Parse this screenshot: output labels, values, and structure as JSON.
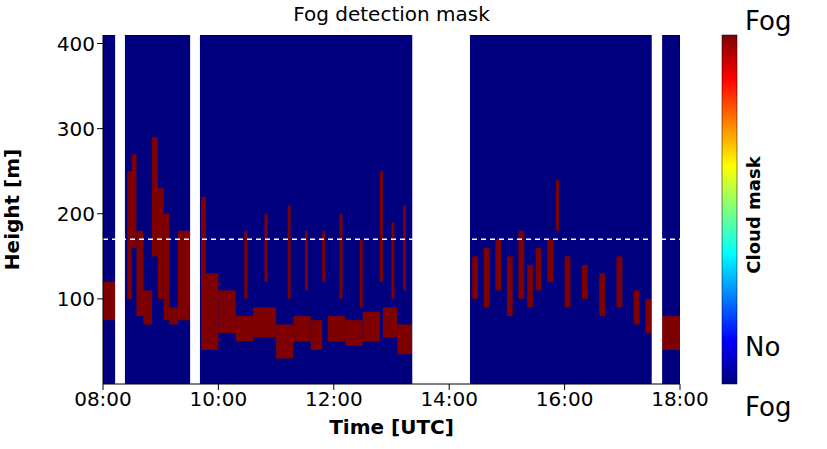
{
  "chart_data": {
    "type": "heatmap",
    "title": "Fog detection mask",
    "x_label": "Time [UTC]",
    "y_label": "Height [m]",
    "xlim": [
      8,
      18
    ],
    "xticks": [
      {
        "value": 8,
        "label": "08:00"
      },
      {
        "value": 10,
        "label": "10:00"
      },
      {
        "value": 12,
        "label": "12:00"
      },
      {
        "value": 14,
        "label": "14:00"
      },
      {
        "value": 16,
        "label": "16:00"
      },
      {
        "value": 18,
        "label": "18:00"
      }
    ],
    "ylim": [
      0,
      410
    ],
    "yticks": [
      100,
      200,
      300,
      400
    ],
    "color": "#7f0000",
    "fog_cells": [
      [
        8.0,
        8.21,
        75,
        120
      ],
      [
        8.42,
        8.5,
        100,
        250
      ],
      [
        8.5,
        8.58,
        160,
        270
      ],
      [
        8.58,
        8.7,
        80,
        180
      ],
      [
        8.7,
        8.85,
        70,
        110
      ],
      [
        8.85,
        8.95,
        150,
        290
      ],
      [
        8.95,
        9.05,
        100,
        230
      ],
      [
        9.05,
        9.15,
        75,
        200
      ],
      [
        9.15,
        9.3,
        70,
        90
      ],
      [
        9.3,
        9.51,
        75,
        180
      ],
      [
        9.7,
        9.78,
        110,
        220
      ],
      [
        9.7,
        10.0,
        40,
        130
      ],
      [
        10.0,
        10.3,
        60,
        110
      ],
      [
        10.3,
        10.6,
        50,
        80
      ],
      [
        10.45,
        10.5,
        100,
        180
      ],
      [
        10.6,
        11.0,
        55,
        90
      ],
      [
        10.8,
        10.85,
        120,
        200
      ],
      [
        11.0,
        11.3,
        30,
        70
      ],
      [
        11.2,
        11.25,
        100,
        210
      ],
      [
        11.3,
        11.6,
        50,
        80
      ],
      [
        11.5,
        11.55,
        110,
        180
      ],
      [
        11.6,
        11.8,
        40,
        75
      ],
      [
        11.8,
        11.85,
        120,
        180
      ],
      [
        11.9,
        12.2,
        50,
        80
      ],
      [
        12.1,
        12.15,
        100,
        200
      ],
      [
        12.2,
        12.5,
        45,
        75
      ],
      [
        12.45,
        12.5,
        90,
        170
      ],
      [
        12.5,
        12.8,
        50,
        85
      ],
      [
        12.8,
        12.85,
        120,
        250
      ],
      [
        12.85,
        13.1,
        55,
        90
      ],
      [
        13.0,
        13.05,
        100,
        190
      ],
      [
        13.1,
        13.36,
        35,
        70
      ],
      [
        13.2,
        13.25,
        110,
        210
      ],
      [
        14.4,
        14.5,
        100,
        150
      ],
      [
        14.6,
        14.7,
        90,
        160
      ],
      [
        14.8,
        14.9,
        110,
        170
      ],
      [
        15.0,
        15.1,
        80,
        150
      ],
      [
        15.2,
        15.3,
        100,
        180
      ],
      [
        15.35,
        15.45,
        90,
        140
      ],
      [
        15.5,
        15.6,
        110,
        160
      ],
      [
        15.7,
        15.8,
        120,
        170
      ],
      [
        15.85,
        15.9,
        180,
        240
      ],
      [
        16.0,
        16.1,
        90,
        150
      ],
      [
        16.3,
        16.4,
        100,
        140
      ],
      [
        16.6,
        16.7,
        80,
        130
      ],
      [
        16.9,
        17.0,
        90,
        150
      ],
      [
        17.2,
        17.3,
        70,
        110
      ],
      [
        17.4,
        17.5,
        60,
        100
      ],
      [
        17.69,
        18.0,
        40,
        80
      ]
    ],
    "missing_data": [
      [
        8.21,
        8.38
      ],
      [
        9.51,
        9.68
      ],
      [
        13.36,
        14.36
      ],
      [
        17.51,
        17.69
      ]
    ],
    "threshold_height": 170,
    "colorbar": {
      "label": "Cloud mask",
      "top_label": "Fog",
      "bottom_label": "No Fog"
    }
  }
}
